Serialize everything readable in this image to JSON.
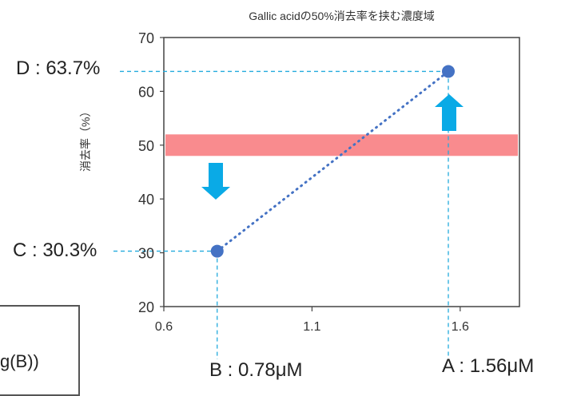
{
  "chart_data": {
    "type": "scatter",
    "title": "Gallic acidの50%消去率を挟む濃度域",
    "ylabel": "消去率（%）",
    "xlabel": "",
    "xlim": [
      0.6,
      1.8
    ],
    "ylim": [
      20,
      70
    ],
    "xticks": [
      "0.6",
      "1.1",
      "1.6"
    ],
    "yticks": [
      "20",
      "30",
      "40",
      "50",
      "60",
      "70"
    ],
    "points": [
      {
        "x": 0.78,
        "y": 30.3
      },
      {
        "x": 1.56,
        "y": 63.7
      }
    ],
    "band": {
      "y0": 48,
      "y1": 52,
      "color": "#f98b8e"
    },
    "annotations": {
      "D": "D : 63.7%",
      "C": "C : 30.3%",
      "B": "B : 0.78μM",
      "A": "A : 1.56μM"
    },
    "colors": {
      "point": "#4472c4",
      "guide": "#22aadd",
      "arrow": "#0aaae6",
      "axis": "#444444"
    }
  },
  "side_panel": {
    "formula_fragment": "g(B))"
  }
}
